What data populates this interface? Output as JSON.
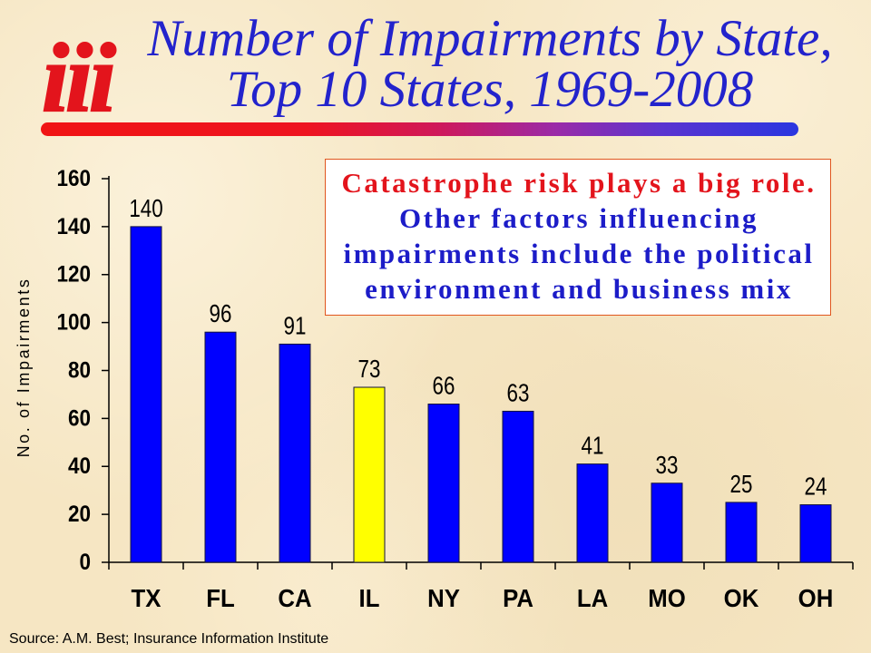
{
  "slide": {
    "logo_text": "iii",
    "title_line1": "Number of Impairments by State,",
    "title_line2": "Top 10 States, 1969-2008",
    "callout": {
      "headline": "Catastrophe risk plays a big role.",
      "body_lines": [
        "Other factors influencing",
        "impairments include the political",
        "environment and business mix"
      ]
    },
    "source": "Source: A.M. Best; Insurance Information Institute"
  },
  "colors": {
    "background": "#f6e6c3",
    "title": "#2323cc",
    "logo": "#e3141c",
    "callout_headline": "#e3141c",
    "callout_body": "#1c1cc8",
    "callout_border": "#e0561e"
  },
  "chart_data": {
    "type": "bar",
    "categories": [
      "TX",
      "FL",
      "CA",
      "IL",
      "NY",
      "PA",
      "LA",
      "MO",
      "OK",
      "OH"
    ],
    "values": [
      140,
      96,
      91,
      73,
      66,
      63,
      41,
      33,
      25,
      24
    ],
    "bar_colors": [
      "#0000ff",
      "#0000ff",
      "#0000ff",
      "#ffff00",
      "#0000ff",
      "#0000ff",
      "#0000ff",
      "#0000ff",
      "#0000ff",
      "#0000ff"
    ],
    "data_labels": true,
    "xlabel": "",
    "ylabel": "No. of Impairments",
    "ylim": [
      0,
      160
    ],
    "yticks": [
      0,
      20,
      40,
      60,
      80,
      100,
      120,
      140,
      160
    ],
    "grid": false,
    "legend": "none"
  }
}
